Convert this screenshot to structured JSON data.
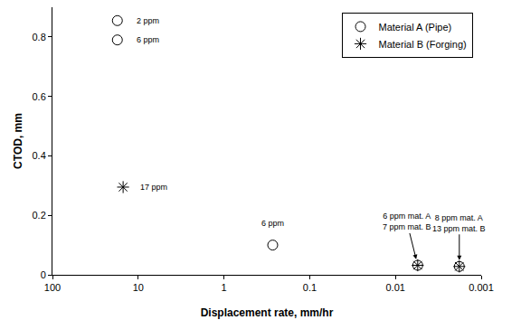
{
  "chart_data": {
    "type": "scatter",
    "x_label": "Displacement rate, mm/hr",
    "y_label": "CTOD, mm",
    "log": "x",
    "grid": false,
    "legend": "top right",
    "xlim": [
      100,
      0.001
    ],
    "xticks": [
      100,
      10,
      1,
      0.1,
      0.01,
      0.001
    ],
    "ylim": [
      0,
      0.9
    ],
    "yticks": [
      0,
      0.2,
      0.4,
      0.6,
      0.8
    ],
    "series": [
      {
        "name": "Material A (Pipe)",
        "color": "#000000",
        "marker": "circle-open",
        "x": [
          17.5,
          17.5,
          0.27,
          0.0055,
          0.0018
        ],
        "values": [
          0.855,
          0.79,
          0.1,
          0.032,
          0.028
        ]
      },
      {
        "name": "Material B (Forging)",
        "color": "#000000",
        "marker": "asterisk-open",
        "x": [
          15,
          0.0055,
          0.0018
        ],
        "values": [
          0.295,
          0.032,
          0.028
        ]
      }
    ],
    "annotations": [
      {
        "text": [
          "2 ppm"
        ],
        "x": 17.5,
        "y": 0.855
      },
      {
        "text": [
          "6 ppm"
        ],
        "x": 17.5,
        "y": 0.79
      },
      {
        "text": [
          "17 ppm"
        ],
        "x": 15,
        "y": 0.295
      },
      {
        "text": [
          "6 ppm"
        ],
        "x": 0.27,
        "y": 0.1
      },
      {
        "text": [
          "6 ppm mat. A",
          "7 ppm mat. B"
        ],
        "x": 0.0055,
        "y": 0.032
      },
      {
        "text": [
          "8 ppm mat. A",
          "13 ppm mat. B"
        ],
        "x": 0.0018,
        "y": 0.028
      }
    ]
  }
}
